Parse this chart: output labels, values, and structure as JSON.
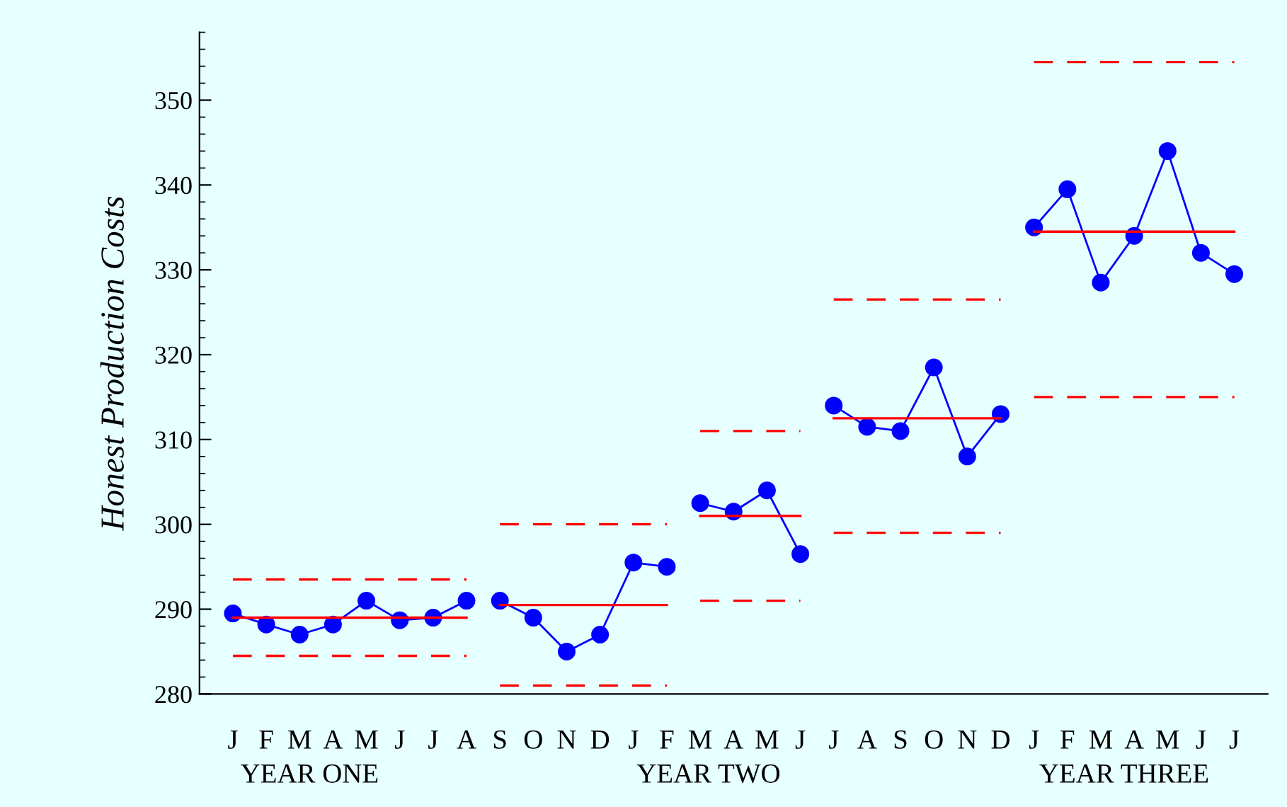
{
  "chart_data": {
    "type": "line",
    "ylabel": "Honest Production Costs",
    "categories": [
      "J",
      "F",
      "M",
      "A",
      "M",
      "J",
      "J",
      "A",
      "S",
      "O",
      "N",
      "D",
      "J",
      "F",
      "M",
      "A",
      "M",
      "J",
      "J",
      "A",
      "S",
      "O",
      "N",
      "D",
      "J",
      "F",
      "M",
      "A",
      "M",
      "J",
      "J"
    ],
    "annotations": [
      "YEAR ONE",
      "YEAR TWO",
      "YEAR THREE"
    ],
    "ylim": [
      280,
      358
    ],
    "yticks": [
      280,
      290,
      300,
      310,
      320,
      330,
      340,
      350
    ],
    "grid": false,
    "legend": false,
    "series": [
      {
        "color": "#0000ff",
        "marker": "circle",
        "line_style": "solid",
        "values": [
          289.5,
          288.2,
          287.0,
          288.2,
          291.0,
          288.7,
          289.0,
          291.0,
          null,
          null,
          null,
          null,
          null,
          null,
          null,
          null,
          null,
          null,
          null,
          null,
          null,
          null,
          null,
          null,
          null,
          null,
          null,
          null,
          null,
          null,
          null
        ]
      },
      {
        "color": "#0000ff",
        "marker": "circle",
        "line_style": "solid",
        "values": [
          null,
          null,
          null,
          null,
          null,
          null,
          null,
          null,
          291.0,
          289.0,
          285.0,
          287.0,
          295.5,
          295.0,
          null,
          null,
          null,
          null,
          null,
          null,
          null,
          null,
          null,
          null,
          null,
          null,
          null,
          null,
          null,
          null,
          null
        ]
      },
      {
        "color": "#0000ff",
        "marker": "circle",
        "line_style": "solid",
        "values": [
          null,
          null,
          null,
          null,
          null,
          null,
          null,
          null,
          null,
          null,
          null,
          null,
          null,
          null,
          302.5,
          301.5,
          304.0,
          296.5,
          null,
          null,
          null,
          null,
          null,
          null,
          null,
          null,
          null,
          null,
          null,
          null,
          null
        ]
      },
      {
        "color": "#0000ff",
        "marker": "circle",
        "line_style": "solid",
        "values": [
          null,
          null,
          null,
          null,
          null,
          null,
          null,
          null,
          null,
          null,
          null,
          null,
          null,
          null,
          null,
          null,
          null,
          null,
          314.0,
          311.5,
          311.0,
          318.5,
          308.0,
          313.0,
          null,
          null,
          null,
          null,
          null,
          null,
          null
        ]
      },
      {
        "color": "#0000ff",
        "marker": "circle",
        "line_style": "solid",
        "values": [
          null,
          null,
          null,
          null,
          null,
          null,
          null,
          null,
          null,
          null,
          null,
          null,
          null,
          null,
          null,
          null,
          null,
          null,
          null,
          null,
          null,
          null,
          null,
          null,
          335.0,
          339.5,
          328.5,
          334.0,
          344.0,
          332.0,
          329.5
        ]
      },
      {
        "color": "#ff0000",
        "marker": "none",
        "line_style": "solid",
        "values": [
          289.0,
          289.0,
          289.0,
          289.0,
          289.0,
          289.0,
          289.0,
          289.0,
          null,
          null,
          null,
          null,
          null,
          null,
          null,
          null,
          null,
          null,
          null,
          null,
          null,
          null,
          null,
          null,
          null,
          null,
          null,
          null,
          null,
          null,
          null
        ]
      },
      {
        "color": "#ff0000",
        "marker": "none",
        "line_style": "dashed",
        "values": [
          293.5,
          293.5,
          293.5,
          293.5,
          293.5,
          293.5,
          293.5,
          293.5,
          null,
          null,
          null,
          null,
          null,
          null,
          null,
          null,
          null,
          null,
          null,
          null,
          null,
          null,
          null,
          null,
          null,
          null,
          null,
          null,
          null,
          null,
          null
        ]
      },
      {
        "color": "#ff0000",
        "marker": "none",
        "line_style": "dashed",
        "values": [
          284.5,
          284.5,
          284.5,
          284.5,
          284.5,
          284.5,
          284.5,
          284.5,
          null,
          null,
          null,
          null,
          null,
          null,
          null,
          null,
          null,
          null,
          null,
          null,
          null,
          null,
          null,
          null,
          null,
          null,
          null,
          null,
          null,
          null,
          null
        ]
      },
      {
        "color": "#ff0000",
        "marker": "none",
        "line_style": "solid",
        "values": [
          null,
          null,
          null,
          null,
          null,
          null,
          null,
          null,
          290.5,
          290.5,
          290.5,
          290.5,
          290.5,
          290.5,
          null,
          null,
          null,
          null,
          null,
          null,
          null,
          null,
          null,
          null,
          null,
          null,
          null,
          null,
          null,
          null,
          null
        ]
      },
      {
        "color": "#ff0000",
        "marker": "none",
        "line_style": "dashed",
        "values": [
          null,
          null,
          null,
          null,
          null,
          null,
          null,
          null,
          300.0,
          300.0,
          300.0,
          300.0,
          300.0,
          300.0,
          null,
          null,
          null,
          null,
          null,
          null,
          null,
          null,
          null,
          null,
          null,
          null,
          null,
          null,
          null,
          null,
          null
        ]
      },
      {
        "color": "#ff0000",
        "marker": "none",
        "line_style": "dashed",
        "values": [
          null,
          null,
          null,
          null,
          null,
          null,
          null,
          null,
          281.0,
          281.0,
          281.0,
          281.0,
          281.0,
          281.0,
          null,
          null,
          null,
          null,
          null,
          null,
          null,
          null,
          null,
          null,
          null,
          null,
          null,
          null,
          null,
          null,
          null
        ]
      },
      {
        "color": "#ff0000",
        "marker": "none",
        "line_style": "solid",
        "values": [
          null,
          null,
          null,
          null,
          null,
          null,
          null,
          null,
          null,
          null,
          null,
          null,
          null,
          null,
          301.0,
          301.0,
          301.0,
          301.0,
          null,
          null,
          null,
          null,
          null,
          null,
          null,
          null,
          null,
          null,
          null,
          null,
          null
        ]
      },
      {
        "color": "#ff0000",
        "marker": "none",
        "line_style": "dashed",
        "values": [
          null,
          null,
          null,
          null,
          null,
          null,
          null,
          null,
          null,
          null,
          null,
          null,
          null,
          null,
          311.0,
          311.0,
          311.0,
          311.0,
          null,
          null,
          null,
          null,
          null,
          null,
          null,
          null,
          null,
          null,
          null,
          null,
          null
        ]
      },
      {
        "color": "#ff0000",
        "marker": "none",
        "line_style": "dashed",
        "values": [
          null,
          null,
          null,
          null,
          null,
          null,
          null,
          null,
          null,
          null,
          null,
          null,
          null,
          null,
          291.0,
          291.0,
          291.0,
          291.0,
          null,
          null,
          null,
          null,
          null,
          null,
          null,
          null,
          null,
          null,
          null,
          null,
          null
        ]
      },
      {
        "color": "#ff0000",
        "marker": "none",
        "line_style": "solid",
        "values": [
          null,
          null,
          null,
          null,
          null,
          null,
          null,
          null,
          null,
          null,
          null,
          null,
          null,
          null,
          null,
          null,
          null,
          null,
          312.5,
          312.5,
          312.5,
          312.5,
          312.5,
          312.5,
          null,
          null,
          null,
          null,
          null,
          null,
          null
        ]
      },
      {
        "color": "#ff0000",
        "marker": "none",
        "line_style": "dashed",
        "values": [
          null,
          null,
          null,
          null,
          null,
          null,
          null,
          null,
          null,
          null,
          null,
          null,
          null,
          null,
          null,
          null,
          null,
          null,
          326.5,
          326.5,
          326.5,
          326.5,
          326.5,
          326.5,
          null,
          null,
          null,
          null,
          null,
          null,
          null
        ]
      },
      {
        "color": "#ff0000",
        "marker": "none",
        "line_style": "dashed",
        "values": [
          null,
          null,
          null,
          null,
          null,
          null,
          null,
          null,
          null,
          null,
          null,
          null,
          null,
          null,
          null,
          null,
          null,
          null,
          299.0,
          299.0,
          299.0,
          299.0,
          299.0,
          299.0,
          null,
          null,
          null,
          null,
          null,
          null,
          null
        ]
      },
      {
        "color": "#ff0000",
        "marker": "none",
        "line_style": "solid",
        "values": [
          null,
          null,
          null,
          null,
          null,
          null,
          null,
          null,
          null,
          null,
          null,
          null,
          null,
          null,
          null,
          null,
          null,
          null,
          null,
          null,
          null,
          null,
          null,
          null,
          334.5,
          334.5,
          334.5,
          334.5,
          334.5,
          334.5,
          334.5
        ]
      },
      {
        "color": "#ff0000",
        "marker": "none",
        "line_style": "dashed",
        "values": [
          null,
          null,
          null,
          null,
          null,
          null,
          null,
          null,
          null,
          null,
          null,
          null,
          null,
          null,
          null,
          null,
          null,
          null,
          null,
          null,
          null,
          null,
          null,
          null,
          354.5,
          354.5,
          354.5,
          354.5,
          354.5,
          354.5,
          354.5
        ]
      },
      {
        "color": "#ff0000",
        "marker": "none",
        "line_style": "dashed",
        "values": [
          null,
          null,
          null,
          null,
          null,
          null,
          null,
          null,
          null,
          null,
          null,
          null,
          null,
          null,
          null,
          null,
          null,
          null,
          null,
          null,
          null,
          null,
          null,
          null,
          315.0,
          315.0,
          315.0,
          315.0,
          315.0,
          315.0,
          315.0
        ]
      }
    ]
  }
}
